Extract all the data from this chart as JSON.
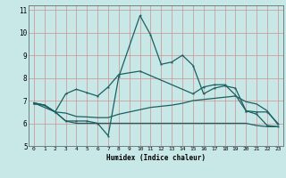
{
  "xlabel": "Humidex (Indice chaleur)",
  "xlim": [
    -0.5,
    23.5
  ],
  "ylim": [
    5,
    11.2
  ],
  "yticks": [
    5,
    6,
    7,
    8,
    9,
    10,
    11
  ],
  "xticks": [
    0,
    1,
    2,
    3,
    4,
    5,
    6,
    7,
    8,
    9,
    10,
    11,
    12,
    13,
    14,
    15,
    16,
    17,
    18,
    19,
    20,
    21,
    22,
    23
  ],
  "bg_color": "#c8e8e8",
  "grid_color": "#d09090",
  "line_color": "#1a6060",
  "series1": {
    "x": [
      0,
      1,
      2,
      3,
      4,
      5,
      6,
      7,
      8,
      10,
      11,
      12,
      13,
      14,
      15,
      16,
      17,
      18,
      19,
      20,
      21,
      22,
      23
    ],
    "y": [
      6.9,
      6.8,
      6.5,
      6.1,
      6.1,
      6.1,
      6.0,
      5.45,
      8.05,
      10.75,
      9.9,
      8.6,
      8.7,
      9.0,
      8.55,
      7.3,
      7.55,
      7.65,
      7.55,
      6.55,
      6.4,
      5.9,
      5.85
    ]
  },
  "series2": {
    "x": [
      0,
      1,
      2,
      3,
      4,
      5,
      6,
      7,
      8,
      9,
      10,
      11,
      12,
      13,
      14,
      15,
      16,
      17,
      18,
      19,
      20,
      21,
      22,
      23
    ],
    "y": [
      6.9,
      6.8,
      6.5,
      6.45,
      6.3,
      6.28,
      6.25,
      6.25,
      6.4,
      6.5,
      6.6,
      6.7,
      6.75,
      6.8,
      6.88,
      7.0,
      7.05,
      7.1,
      7.15,
      7.2,
      6.95,
      6.85,
      6.55,
      5.95
    ]
  },
  "series3": {
    "x": [
      0,
      1,
      2,
      3,
      4,
      5,
      6,
      7,
      8,
      9,
      10,
      11,
      12,
      13,
      14,
      15,
      16,
      17,
      18,
      19,
      20,
      21,
      22,
      23
    ],
    "y": [
      6.85,
      6.8,
      6.5,
      6.1,
      6.0,
      6.0,
      6.0,
      6.0,
      6.0,
      6.0,
      6.0,
      6.0,
      6.0,
      6.0,
      6.0,
      6.0,
      6.0,
      6.0,
      6.0,
      6.0,
      6.0,
      5.9,
      5.85,
      5.85
    ]
  },
  "series4": {
    "x": [
      0,
      2,
      3,
      4,
      5,
      6,
      7,
      8,
      10,
      15,
      16,
      17,
      18,
      19,
      20,
      21,
      22,
      23
    ],
    "y": [
      6.9,
      6.5,
      7.3,
      7.5,
      7.35,
      7.2,
      7.6,
      8.15,
      8.3,
      7.3,
      7.6,
      7.7,
      7.7,
      7.25,
      6.55,
      6.5,
      6.5,
      6.0
    ]
  }
}
